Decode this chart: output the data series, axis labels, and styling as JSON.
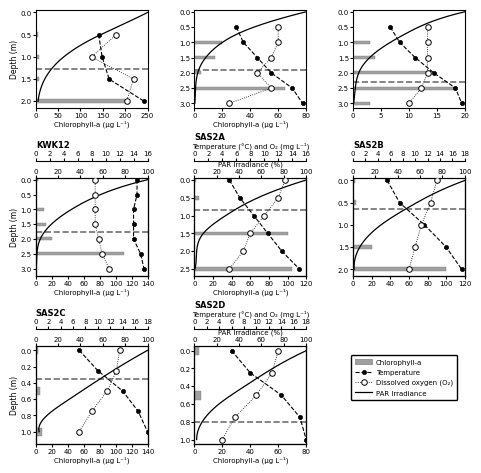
{
  "panels": [
    {
      "label": null,
      "row": 0,
      "col": 0,
      "depth_ylim": [
        2.15,
        -0.05
      ],
      "chl_xlim": [
        0,
        250
      ],
      "chl_xticks": [
        0,
        50,
        100,
        150,
        200,
        250
      ],
      "chl_depths": [
        0.5,
        1.0,
        1.5,
        2.0
      ],
      "chl_values": [
        5,
        8,
        7,
        200
      ],
      "temp_depths": [
        0.5,
        1.0,
        1.5,
        2.0
      ],
      "temp_values": [
        9,
        9.5,
        10.5,
        15.5
      ],
      "do_depths": [
        0.5,
        1.0,
        1.5,
        2.0
      ],
      "do_values": [
        11.5,
        8,
        14,
        13
      ],
      "par_depths": [
        0.0,
        0.3,
        0.6,
        1.0,
        1.5,
        2.0
      ],
      "par_values": [
        100,
        75,
        50,
        25,
        8,
        2
      ],
      "thermocline_depth": 1.27,
      "ylabel": "Depth (m)",
      "xlabel": "Chlorophyll-a (μg L⁻¹)",
      "has_top_axes": false,
      "temp_xlim": [
        0,
        16
      ],
      "temp_xticks": [
        0,
        2,
        4,
        6,
        8,
        10,
        12,
        14,
        16
      ]
    },
    {
      "label": null,
      "row": 0,
      "col": 1,
      "depth_ylim": [
        3.15,
        -0.05
      ],
      "chl_xlim": [
        0,
        80
      ],
      "chl_xticks": [
        0,
        20,
        40,
        60,
        80
      ],
      "chl_depths": [
        1.0,
        1.5,
        2.0,
        2.5
      ],
      "chl_values": [
        20,
        15,
        5,
        65
      ],
      "temp_depths": [
        0.5,
        1.0,
        1.5,
        2.0,
        2.5,
        3.0
      ],
      "temp_values": [
        6,
        7,
        9,
        11,
        14,
        15.5
      ],
      "do_depths": [
        0.5,
        1.0,
        1.5,
        2.0,
        2.5,
        3.0
      ],
      "do_values": [
        12,
        12,
        11,
        9,
        11,
        5
      ],
      "par_depths": [
        0.0,
        0.3,
        0.7,
        1.2,
        1.8,
        2.5,
        3.0
      ],
      "par_values": [
        100,
        70,
        40,
        18,
        5,
        1,
        0.3
      ],
      "thermocline_depth": 1.9,
      "ylabel": "",
      "xlabel": "Chlorophyll-a (μg L⁻¹)",
      "has_top_axes": false,
      "temp_xlim": [
        0,
        16
      ],
      "temp_xticks": [
        0,
        2,
        4,
        6,
        8,
        10,
        12,
        14,
        16
      ]
    },
    {
      "label": null,
      "row": 0,
      "col": 2,
      "depth_ylim": [
        3.15,
        -0.05
      ],
      "chl_xlim": [
        0,
        20
      ],
      "chl_xticks": [
        0,
        5,
        10,
        15,
        20
      ],
      "chl_depths": [
        1.0,
        1.5,
        2.0,
        2.5,
        3.0
      ],
      "chl_values": [
        3,
        4,
        14,
        18,
        3
      ],
      "temp_depths": [
        0.5,
        1.0,
        1.5,
        2.0,
        2.5,
        3.0
      ],
      "temp_values": [
        6,
        7.5,
        10,
        13,
        16.5,
        17.5
      ],
      "do_depths": [
        0.5,
        1.0,
        1.5,
        2.0,
        2.5,
        3.0
      ],
      "do_values": [
        12,
        12,
        12,
        12,
        11,
        9
      ],
      "par_depths": [
        0.0,
        0.3,
        0.7,
        1.2,
        1.8,
        2.5,
        3.0
      ],
      "par_values": [
        100,
        72,
        48,
        25,
        8,
        2,
        0.5
      ],
      "thermocline_depth": 2.3,
      "ylabel": "",
      "xlabel": "",
      "has_top_axes": false,
      "temp_xlim": [
        0,
        18
      ],
      "temp_xticks": [
        0,
        2,
        4,
        6,
        8,
        10,
        12,
        14,
        16,
        18
      ]
    },
    {
      "label": "KWK12",
      "row": 1,
      "col": 0,
      "depth_ylim": [
        3.25,
        -0.05
      ],
      "chl_xlim": [
        0,
        140
      ],
      "chl_xticks": [
        0,
        20,
        40,
        60,
        80,
        100,
        120,
        140
      ],
      "chl_depths": [
        0.0,
        1.0,
        1.5,
        2.0,
        2.5
      ],
      "chl_values": [
        3,
        10,
        13,
        20,
        110
      ],
      "temp_depths": [
        0.0,
        0.5,
        1.0,
        1.5,
        2.0,
        2.5,
        3.0
      ],
      "temp_values": [
        14.5,
        14.5,
        14.0,
        14.0,
        14.0,
        15.0,
        15.5
      ],
      "do_depths": [
        0.0,
        0.5,
        1.0,
        1.5,
        2.0,
        2.5,
        3.0
      ],
      "do_values": [
        8.5,
        8.5,
        8.5,
        8.5,
        9.0,
        9.5,
        10.5
      ],
      "par_depths": [
        0.0,
        0.3,
        0.6,
        1.0,
        1.5,
        2.0,
        2.5,
        3.0
      ],
      "par_values": [
        100,
        72,
        52,
        32,
        14,
        4,
        1,
        0.3
      ],
      "thermocline_depth": 1.75,
      "ylabel": "Depth (m)",
      "xlabel": "Chlorophyll-a (μg L⁻¹)",
      "has_top_axes": true,
      "par_label": false,
      "temp_xlim": [
        0,
        16
      ],
      "temp_xticks": [
        0,
        2,
        4,
        6,
        8,
        10,
        12,
        14,
        16
      ]
    },
    {
      "label": "SAS2A",
      "row": 1,
      "col": 1,
      "depth_ylim": [
        2.7,
        -0.05
      ],
      "chl_xlim": [
        0,
        120
      ],
      "chl_xticks": [
        0,
        20,
        40,
        60,
        80,
        100,
        120
      ],
      "chl_depths": [
        0.0,
        0.5,
        1.5,
        2.5
      ],
      "chl_values": [
        2,
        5,
        100,
        105
      ],
      "temp_depths": [
        0.0,
        0.5,
        1.0,
        1.5,
        2.0,
        2.5
      ],
      "temp_values": [
        5,
        6.5,
        8.5,
        10.5,
        12.5,
        15.0
      ],
      "do_depths": [
        0.0,
        0.5,
        1.0,
        1.5,
        2.0,
        2.5
      ],
      "do_values": [
        13,
        12,
        10,
        8,
        7,
        5
      ],
      "par_depths": [
        0.0,
        0.3,
        0.6,
        1.0,
        1.5,
        2.0,
        2.5
      ],
      "par_values": [
        100,
        72,
        50,
        28,
        8,
        2,
        0.5
      ],
      "thermocline_depth": 0.85,
      "ylabel": "",
      "xlabel": "Chlorophyll-a (μg L⁻¹)",
      "has_top_axes": true,
      "par_label": true,
      "temp_xlim": [
        0,
        16
      ],
      "temp_xticks": [
        0,
        2,
        4,
        6,
        8,
        10,
        12,
        14,
        16
      ]
    },
    {
      "label": "SAS2B",
      "row": 1,
      "col": 2,
      "depth_ylim": [
        2.15,
        -0.05
      ],
      "chl_xlim": [
        0,
        120
      ],
      "chl_xticks": [
        0,
        20,
        40,
        60,
        80,
        100,
        120
      ],
      "chl_depths": [
        0.0,
        0.5,
        1.5,
        2.0
      ],
      "chl_values": [
        2,
        3,
        20,
        100
      ],
      "temp_depths": [
        0.0,
        0.5,
        1.0,
        1.5,
        2.0
      ],
      "temp_values": [
        5.5,
        7.5,
        11.5,
        15.0,
        17.5
      ],
      "do_depths": [
        0.0,
        0.5,
        1.0,
        1.5,
        2.0
      ],
      "do_values": [
        13.5,
        12.5,
        11.0,
        10.0,
        9.0
      ],
      "par_depths": [
        0.0,
        0.3,
        0.6,
        1.0,
        1.5,
        2.0
      ],
      "par_values": [
        100,
        72,
        50,
        25,
        6,
        1
      ],
      "thermocline_depth": 0.65,
      "ylabel": "",
      "xlabel": "",
      "has_top_axes": true,
      "par_label": false,
      "temp_xlim": [
        0,
        18
      ],
      "temp_xticks": [
        0,
        2,
        4,
        6,
        8,
        10,
        12,
        14,
        16,
        18
      ]
    },
    {
      "label": "SAS2C",
      "row": 2,
      "col": 0,
      "depth_ylim": [
        1.15,
        -0.05
      ],
      "chl_xlim": [
        0,
        140
      ],
      "chl_xticks": [
        0,
        20,
        40,
        60,
        80,
        100,
        120,
        140
      ],
      "chl_depths": [
        0.0,
        0.5,
        1.0
      ],
      "chl_values": [
        3,
        5,
        8
      ],
      "temp_depths": [
        0.0,
        0.25,
        0.5,
        0.75,
        1.0
      ],
      "temp_values": [
        7,
        10,
        14,
        16.5,
        18
      ],
      "do_depths": [
        0.0,
        0.25,
        0.5,
        0.75,
        1.0
      ],
      "do_values": [
        13.5,
        13.0,
        11.5,
        9.0,
        7.0
      ],
      "par_depths": [
        0.0,
        0.2,
        0.4,
        0.6,
        0.8,
        1.0
      ],
      "par_values": [
        100,
        75,
        52,
        30,
        10,
        3
      ],
      "thermocline_depth": 0.35,
      "ylabel": "Depth (m)",
      "xlabel": "Chlorophyll-a (μg L⁻¹)",
      "has_top_axes": true,
      "par_label": false,
      "temp_xlim": [
        0,
        18
      ],
      "temp_xticks": [
        0,
        2,
        4,
        6,
        8,
        10,
        12,
        14,
        16,
        18
      ]
    },
    {
      "label": "SAS2D",
      "row": 2,
      "col": 1,
      "depth_ylim": [
        1.05,
        -0.05
      ],
      "chl_xlim": [
        0,
        80
      ],
      "chl_xticks": [
        0,
        20,
        40,
        60,
        80
      ],
      "chl_depths": [
        0.0,
        0.5
      ],
      "chl_values": [
        3,
        5
      ],
      "temp_depths": [
        0.0,
        0.25,
        0.5,
        0.75,
        1.0
      ],
      "temp_values": [
        6,
        9,
        14,
        17,
        18
      ],
      "do_depths": [
        0.0,
        0.25,
        0.5,
        0.75,
        1.0
      ],
      "do_values": [
        13.5,
        12.5,
        10.0,
        6.5,
        4.5
      ],
      "par_depths": [
        0.0,
        0.2,
        0.4,
        0.6,
        0.8,
        1.0
      ],
      "par_values": [
        100,
        70,
        45,
        22,
        7,
        2
      ],
      "thermocline_depth": 0.8,
      "ylabel": "",
      "xlabel": "Chlorophyll-a (μg L⁻¹)",
      "has_top_axes": true,
      "par_label": true,
      "temp_xlim": [
        0,
        18
      ],
      "temp_xticks": [
        0,
        2,
        4,
        6,
        8,
        10,
        12,
        14,
        16,
        18
      ]
    }
  ],
  "par_xlim": [
    0,
    100
  ],
  "par_xticks": [
    0,
    20,
    40,
    60,
    80,
    100
  ],
  "bar_color": "#a0a0a0",
  "thermocline_color": "#707070"
}
